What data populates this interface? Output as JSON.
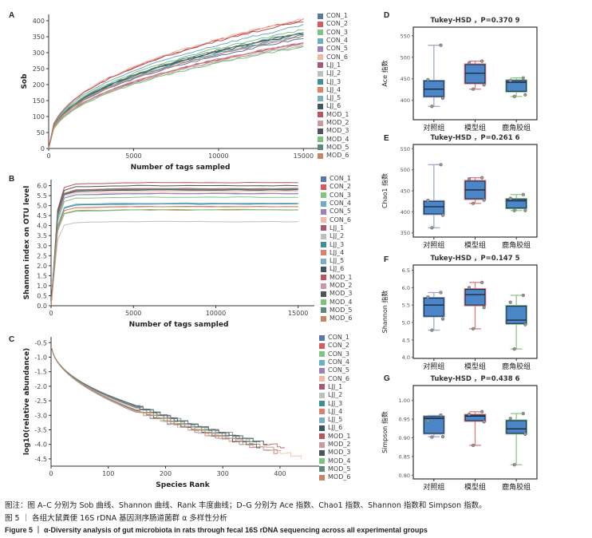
{
  "panels": {
    "A": "A",
    "B": "B",
    "C": "C",
    "D": "D",
    "E": "E",
    "F": "F",
    "G": "G"
  },
  "legend": {
    "items": [
      {
        "label": "CON_1",
        "color": "#5b78a8"
      },
      {
        "label": "CON_2",
        "color": "#d9595c"
      },
      {
        "label": "CON_3",
        "color": "#7fc47f"
      },
      {
        "label": "CON_4",
        "color": "#6aaec0"
      },
      {
        "label": "CON_5",
        "color": "#9d80b8"
      },
      {
        "label": "CON_6",
        "color": "#f0b8a4"
      },
      {
        "label": "LJJ_1",
        "color": "#a85870"
      },
      {
        "label": "LJJ_2",
        "color": "#bdbfc1"
      },
      {
        "label": "LJJ_3",
        "color": "#3f8f97"
      },
      {
        "label": "LJJ_4",
        "color": "#d9836a"
      },
      {
        "label": "LJJ_5",
        "color": "#79aec4"
      },
      {
        "label": "LJJ_6",
        "color": "#3f5660"
      },
      {
        "label": "MOD_1",
        "color": "#b8555d"
      },
      {
        "label": "MOD_2",
        "color": "#c89aa0"
      },
      {
        "label": "MOD_3",
        "color": "#4f5458"
      },
      {
        "label": "MOD_4",
        "color": "#7cc17c"
      },
      {
        "label": "MOD_5",
        "color": "#5b8a7c"
      },
      {
        "label": "MOD_6",
        "color": "#c98463"
      }
    ]
  },
  "chart_data": [
    {
      "id": "A",
      "type": "line",
      "title": "",
      "xlabel": "Number of tags sampled",
      "ylabel": "Sob",
      "xlim": [
        0,
        15500
      ],
      "ylim": [
        0,
        420
      ],
      "xticks": [
        0,
        5000,
        10000,
        15000
      ],
      "yticks": [
        0,
        50,
        100,
        150,
        200,
        250,
        300,
        350,
        400
      ],
      "grid": false,
      "legend": "right",
      "x": [
        0,
        400,
        800,
        1500,
        2500,
        3500,
        5000,
        6500,
        8000,
        10000,
        12000,
        14000,
        15000
      ],
      "series": [
        {
          "name": "CON_1",
          "final": 345
        },
        {
          "name": "CON_2",
          "final": 403
        },
        {
          "name": "CON_3",
          "final": 372
        },
        {
          "name": "CON_4",
          "final": 385
        },
        {
          "name": "CON_5",
          "final": 330
        },
        {
          "name": "CON_6",
          "final": 406
        },
        {
          "name": "LJJ_1",
          "final": 330
        },
        {
          "name": "LJJ_2",
          "final": 322
        },
        {
          "name": "LJJ_3",
          "final": 355
        },
        {
          "name": "LJJ_4",
          "final": 332
        },
        {
          "name": "LJJ_5",
          "final": 352
        },
        {
          "name": "LJJ_6",
          "final": 362
        },
        {
          "name": "MOD_1",
          "final": 400
        },
        {
          "name": "MOD_2",
          "final": 325
        },
        {
          "name": "MOD_3",
          "final": 360
        },
        {
          "name": "MOD_4",
          "final": 318
        },
        {
          "name": "MOD_5",
          "final": 365
        },
        {
          "name": "MOD_6",
          "final": 350
        }
      ]
    },
    {
      "id": "B",
      "type": "line",
      "title": "",
      "xlabel": "Number of tags sampled",
      "ylabel": "Shannon index on OTU level",
      "xlim": [
        0,
        15500
      ],
      "ylim": [
        0,
        6.3
      ],
      "xticks": [
        0,
        5000,
        10000,
        15000
      ],
      "yticks": [
        0.0,
        0.5,
        1.0,
        1.5,
        2.0,
        2.5,
        3.0,
        3.5,
        4.0,
        4.5,
        5.0,
        5.5,
        6.0
      ],
      "grid": false,
      "legend": "right",
      "x": [
        0,
        400,
        800,
        1500,
        3000,
        5000,
        10000,
        15000
      ],
      "series": [
        {
          "name": "CON_1",
          "final": 5.6
        },
        {
          "name": "CON_2",
          "final": 5.85
        },
        {
          "name": "CON_3",
          "final": 5.42
        },
        {
          "name": "CON_4",
          "final": 5.1
        },
        {
          "name": "CON_5",
          "final": 5.6
        },
        {
          "name": "CON_6",
          "final": 5.7
        },
        {
          "name": "LJJ_1",
          "final": 5.8
        },
        {
          "name": "LJJ_2",
          "final": 4.2
        },
        {
          "name": "LJJ_3",
          "final": 5.08
        },
        {
          "name": "LJJ_4",
          "final": 4.8
        },
        {
          "name": "LJJ_5",
          "final": 5.12
        },
        {
          "name": "LJJ_6",
          "final": 5.78
        },
        {
          "name": "MOD_1",
          "final": 6.15
        },
        {
          "name": "MOD_2",
          "final": 4.95
        },
        {
          "name": "MOD_3",
          "final": 6.0
        },
        {
          "name": "MOD_4",
          "final": 4.78
        },
        {
          "name": "MOD_5",
          "final": 5.82
        },
        {
          "name": "MOD_6",
          "final": 4.95
        }
      ]
    },
    {
      "id": "C",
      "type": "line",
      "title": "",
      "xlabel": "Species Rank",
      "ylabel": "log10(relative abundance)",
      "xlim": [
        0,
        460
      ],
      "ylim": [
        -4.75,
        -0.3
      ],
      "xticks": [
        0,
        100,
        200,
        300,
        400
      ],
      "yticks": [
        -0.5,
        -1.0,
        -1.5,
        -2.0,
        -2.5,
        -3.0,
        -3.5,
        -4.0,
        -4.5
      ],
      "grid": false,
      "legend": "right",
      "series": [
        {
          "name": "CON_1",
          "maxrank": 350
        },
        {
          "name": "CON_2",
          "maxrank": 400
        },
        {
          "name": "CON_3",
          "maxrank": 370
        },
        {
          "name": "CON_4",
          "maxrank": 395
        },
        {
          "name": "CON_5",
          "maxrank": 330
        },
        {
          "name": "CON_6",
          "maxrank": 438
        },
        {
          "name": "LJJ_1",
          "maxrank": 335
        },
        {
          "name": "LJJ_2",
          "maxrank": 325
        },
        {
          "name": "LJJ_3",
          "maxrank": 360
        },
        {
          "name": "LJJ_4",
          "maxrank": 340
        },
        {
          "name": "LJJ_5",
          "maxrank": 365
        },
        {
          "name": "LJJ_6",
          "maxrank": 370
        },
        {
          "name": "MOD_1",
          "maxrank": 412
        },
        {
          "name": "MOD_2",
          "maxrank": 328
        },
        {
          "name": "MOD_3",
          "maxrank": 380
        },
        {
          "name": "MOD_4",
          "maxrank": 320
        },
        {
          "name": "MOD_5",
          "maxrank": 375
        },
        {
          "name": "MOD_6",
          "maxrank": 405
        }
      ]
    },
    {
      "id": "D",
      "type": "box",
      "title": "Tukey-HSD ，P=0.370 9",
      "ylabel": "Ace 指数",
      "ylim": [
        355,
        570
      ],
      "yticks": [
        400,
        450,
        500,
        550
      ],
      "categories": [
        "对照组",
        "模型组",
        "鹿角胶组"
      ],
      "groups": [
        {
          "name": "对照组",
          "whisker_low": 386,
          "q1": 409,
          "median": 426,
          "q3": 445,
          "whisker_high": 528,
          "points": [
            528,
            448,
            405,
            386
          ],
          "color": "#9aaccf"
        },
        {
          "name": "模型组",
          "whisker_low": 426,
          "q1": 440,
          "median": 463,
          "q3": 483,
          "whisker_high": 491,
          "points": [
            491,
            487,
            436,
            426
          ],
          "color": "#e07a80"
        },
        {
          "name": "鹿角胶组",
          "whisker_low": 409,
          "q1": 421,
          "median": 442,
          "q3": 446,
          "whisker_high": 452,
          "points": [
            452,
            446,
            413,
            409
          ],
          "color": "#8cc98c"
        }
      ]
    },
    {
      "id": "E",
      "type": "box",
      "title": "Tukey-HSD ，P=0.261 6",
      "ylabel": "Chao1 指数",
      "ylim": [
        340,
        560
      ],
      "yticks": [
        350,
        400,
        450,
        500,
        550
      ],
      "categories": [
        "对照组",
        "模型组",
        "鹿角胶组"
      ],
      "groups": [
        {
          "name": "对照组",
          "whisker_low": 362,
          "q1": 395,
          "median": 412,
          "q3": 425,
          "whisker_high": 512,
          "points": [
            512,
            427,
            392,
            362
          ],
          "color": "#9aaccf"
        },
        {
          "name": "模型组",
          "whisker_low": 420,
          "q1": 431,
          "median": 452,
          "q3": 473,
          "whisker_high": 481,
          "points": [
            481,
            478,
            428,
            420
          ],
          "color": "#e07a80"
        },
        {
          "name": "鹿角胶组",
          "whisker_low": 403,
          "q1": 409,
          "median": 426,
          "q3": 430,
          "whisker_high": 441,
          "points": [
            441,
            432,
            403,
            403
          ],
          "color": "#8cc98c"
        }
      ]
    },
    {
      "id": "F",
      "type": "box",
      "title": "Tukey-HSD ，P=0.147 5",
      "ylabel": "Shannon 指数",
      "ylim": [
        3.97,
        6.65
      ],
      "yticks": [
        4.0,
        4.5,
        5.0,
        5.5,
        6.0,
        6.5
      ],
      "categories": [
        "对照组",
        "模型组",
        "鹿角胶组"
      ],
      "groups": [
        {
          "name": "对照组",
          "whisker_low": 4.78,
          "q1": 5.18,
          "median": 5.5,
          "q3": 5.7,
          "whisker_high": 5.86,
          "points": [
            5.86,
            5.73,
            5.1,
            4.78
          ],
          "color": "#9aaccf"
        },
        {
          "name": "模型组",
          "whisker_low": 4.82,
          "q1": 5.5,
          "median": 5.8,
          "q3": 5.95,
          "whisker_high": 6.15,
          "points": [
            6.15,
            6.0,
            5.43,
            4.82
          ],
          "color": "#e07a80"
        },
        {
          "name": "鹿角胶组",
          "whisker_low": 4.24,
          "q1": 4.97,
          "median": 5.07,
          "q3": 5.47,
          "whisker_high": 5.78,
          "points": [
            5.78,
            5.58,
            4.94,
            4.24
          ],
          "color": "#8cc98c"
        }
      ]
    },
    {
      "id": "G",
      "type": "box",
      "title": "Tukey-HSD ，P=0.438 6",
      "ylabel": "Simpson 指数",
      "ylim": [
        0.79,
        1.04
      ],
      "yticks": [
        0.8,
        0.85,
        0.9,
        0.95,
        1.0
      ],
      "categories": [
        "对照组",
        "模型组",
        "鹿角胶组"
      ],
      "groups": [
        {
          "name": "对照组",
          "whisker_low": 0.903,
          "q1": 0.912,
          "median": 0.952,
          "q3": 0.957,
          "whisker_high": 0.96,
          "points": [
            0.961,
            0.945,
            0.903,
            0.902
          ],
          "color": "#9aaccf"
        },
        {
          "name": "模型组",
          "whisker_low": 0.88,
          "q1": 0.946,
          "median": 0.958,
          "q3": 0.961,
          "whisker_high": 0.97,
          "points": [
            0.97,
            0.963,
            0.943,
            0.88
          ],
          "color": "#e07a80"
        },
        {
          "name": "鹿角胶组",
          "whisker_low": 0.828,
          "q1": 0.912,
          "median": 0.924,
          "q3": 0.946,
          "whisker_high": 0.965,
          "points": [
            0.965,
            0.952,
            0.91,
            0.828
          ],
          "color": "#8cc98c"
        }
      ]
    }
  ],
  "caption": {
    "note": "图注：图 A–C 分别为 Sob 曲线、Shannon 曲线、Rank 丰度曲线；D–G 分别为 Ace 指数、Chao1 指数、Shannon 指数和 Simpson 指数。",
    "title_cn": "图 5 ｜ 各组大鼠粪便 16S rDNA 基因测序肠道菌群 α 多样性分析",
    "title_en": "Figure 5 ｜ α-Diversity analysis of gut microbiota in rats through fecal 16S rDNA sequencing across all experimental groups"
  }
}
